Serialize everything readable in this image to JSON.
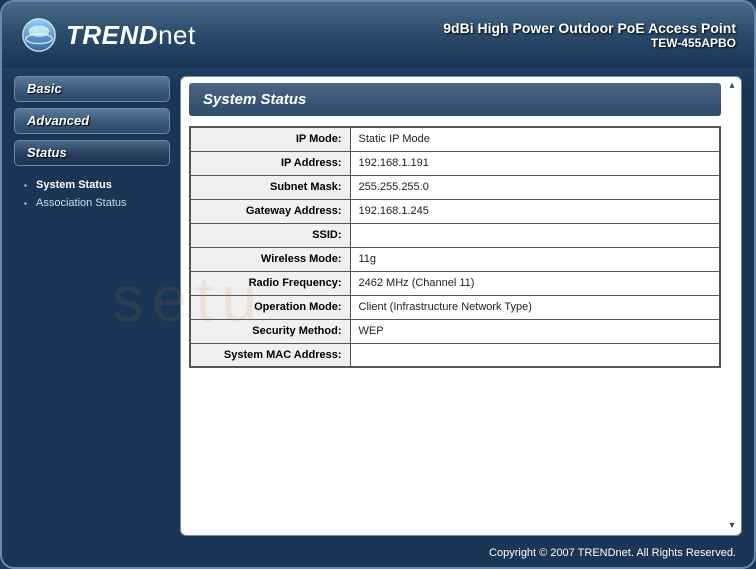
{
  "brand": {
    "name_bold": "TREND",
    "name_light": "net"
  },
  "header": {
    "product_title": "9dBi High Power Outdoor PoE Access Point",
    "product_model": "TEW-455APBO"
  },
  "sidebar": {
    "items": [
      {
        "label": "Basic",
        "active": false
      },
      {
        "label": "Advanced",
        "active": false
      },
      {
        "label": "Status",
        "active": true
      }
    ],
    "sub_items": [
      {
        "label": "System Status",
        "current": true
      },
      {
        "label": "Association Status",
        "current": false
      }
    ]
  },
  "panel": {
    "title": "System Status"
  },
  "status_rows": [
    {
      "label": "IP Mode:",
      "value": "Static IP Mode"
    },
    {
      "label": "IP Address:",
      "value": "192.168.1.191"
    },
    {
      "label": "Subnet Mask:",
      "value": "255.255.255.0"
    },
    {
      "label": "Gateway Address:",
      "value": "192.168.1.245"
    },
    {
      "label": "SSID:",
      "value": ""
    },
    {
      "label": "Wireless Mode:",
      "value": "11g"
    },
    {
      "label": "Radio Frequency:",
      "value": "2462 MHz (Channel 11)"
    },
    {
      "label": "Operation Mode:",
      "value": "Client (Infrastructure Network Type)"
    },
    {
      "label": "Security Method:",
      "value": " WEP"
    },
    {
      "label": "System MAC Address:",
      "value": ""
    }
  ],
  "footer": {
    "copyright": "Copyright © 2007 TRENDnet. All Rights Reserved."
  },
  "colors": {
    "frame_border": "#6a8aaa",
    "header_grad_top": "#4a6a8a",
    "header_grad_bot": "#1a3555",
    "nav_grad_top": "#5a7a9a",
    "nav_grad_bot": "#2a4a6a",
    "panel_title_bg": "#2f4a6a",
    "table_border": "#555555",
    "label_bg": "#f0f0f0",
    "value_bg": "#ffffff",
    "text_light": "#ffffff"
  },
  "logo": {
    "outer_fill_top": "#3a5a7a",
    "outer_fill_bot": "#6aa",
    "inner_fill": "#bde",
    "stroke": "#cde"
  }
}
